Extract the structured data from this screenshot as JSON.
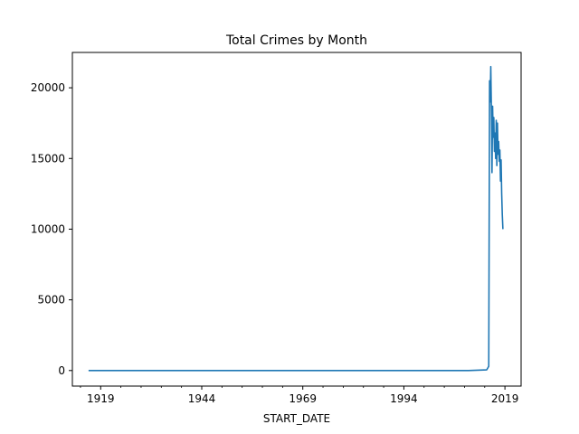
{
  "chart_data": {
    "type": "line",
    "title": "Total Crimes by Month",
    "xlabel": "START_DATE",
    "ylabel": "",
    "x_ticks": [
      "1919",
      "1944",
      "1969",
      "1994",
      "2019"
    ],
    "y_ticks": [
      "0",
      "5000",
      "10000",
      "15000",
      "20000"
    ],
    "xlim": [
      1912,
      2023
    ],
    "ylim": [
      -1100,
      22500
    ],
    "grid": false,
    "legend": "none",
    "series": [
      {
        "color": "#1f77b4",
        "x": [
          1916.0,
          1925.0,
          1950.0,
          1975.0,
          2000.0,
          2010.0,
          2014.5,
          2015.0,
          2015.2,
          2015.35,
          2015.5,
          2015.65,
          2015.8,
          2015.95,
          2016.1,
          2016.25,
          2016.4,
          2016.55,
          2016.7,
          2016.85,
          2017.0,
          2017.15,
          2017.3,
          2017.45,
          2017.6,
          2017.75,
          2017.9,
          2018.05,
          2018.2,
          2018.35,
          2018.5
        ],
        "y": [
          0,
          0,
          0,
          0,
          0,
          0,
          50,
          300,
          20500,
          19000,
          21500,
          18500,
          14000,
          18700,
          16500,
          17900,
          15500,
          16800,
          15000,
          17700,
          14500,
          17500,
          15300,
          16200,
          14800,
          15600,
          13400,
          14900,
          12500,
          11000,
          10000
        ]
      }
    ]
  }
}
